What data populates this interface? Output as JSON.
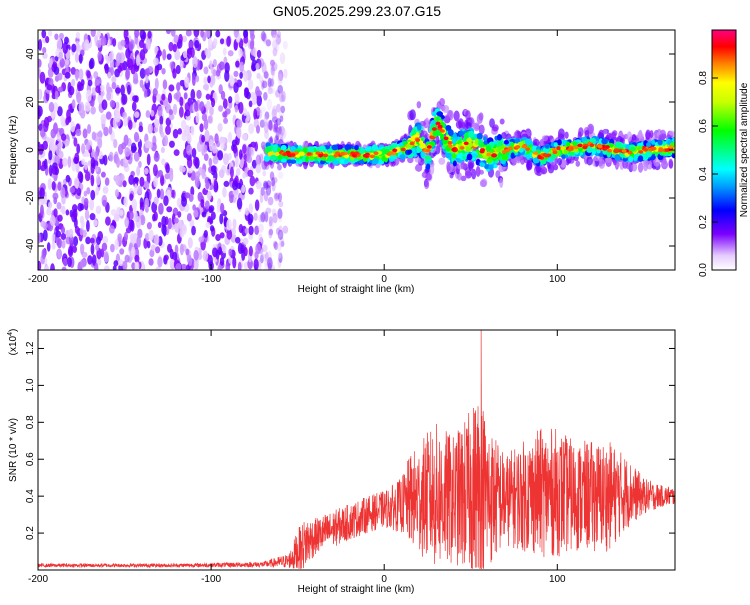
{
  "chart_data": [
    {
      "type": "heatmap",
      "title": "GN05.2025.299.23.07.G15",
      "xlabel": "Height of straight line (km)",
      "ylabel": "Frequency (Hz)",
      "xlim": [
        -200,
        168
      ],
      "ylim": [
        -50,
        50
      ],
      "xticks": [
        -200,
        -100,
        0,
        100
      ],
      "xtick_labels": [
        "-200",
        "-100",
        "0",
        "100"
      ],
      "yticks": [
        -40,
        -20,
        0,
        20,
        40
      ],
      "ytick_labels": [
        "-40",
        "-20",
        "0",
        "20",
        "40"
      ],
      "colorbar": {
        "label": "Normalized spectral amplitude",
        "range": [
          0,
          1
        ],
        "ticks": [
          0.0,
          0.2,
          0.4,
          0.6,
          0.8
        ],
        "tick_labels": [
          "0.0",
          "0.2",
          "0.4",
          "0.6",
          "0.8"
        ]
      },
      "regions": [
        {
          "name": "noise",
          "x_range": [
            -200,
            -65
          ],
          "freq_range": [
            -50,
            50
          ],
          "amplitude": 0.1
        },
        {
          "name": "signal-band",
          "x_range": [
            -68,
            168
          ],
          "freq_center": [
            [
              -68,
              -1
            ],
            [
              -50,
              -2
            ],
            [
              -20,
              -2
            ],
            [
              0,
              -2
            ],
            [
              10,
              0
            ],
            [
              20,
              5
            ],
            [
              25,
              -2
            ],
            [
              30,
              12
            ],
            [
              40,
              0
            ],
            [
              50,
              3
            ],
            [
              60,
              -2
            ],
            [
              70,
              0
            ],
            [
              80,
              2
            ],
            [
              90,
              -3
            ],
            [
              100,
              0
            ],
            [
              120,
              2
            ],
            [
              140,
              -1
            ],
            [
              168,
              1
            ]
          ],
          "amplitude_peak": 0.95
        }
      ]
    },
    {
      "type": "line",
      "title": "",
      "xlabel": "Height of straight line (km)",
      "ylabel": "SNR (10 * v/v)",
      "scale_label": "(x10",
      "scale_exp": "4",
      "scale_close": ")",
      "xlim": [
        -200,
        168
      ],
      "ylim": [
        0,
        1.3
      ],
      "xticks": [
        -200,
        -100,
        0,
        100
      ],
      "xtick_labels": [
        "-200",
        "-100",
        "0",
        "100"
      ],
      "yticks": [
        0.2,
        0.4,
        0.6,
        0.8,
        1.0,
        1.2
      ],
      "ytick_labels": [
        "0.2",
        "0.4",
        "0.6",
        "0.8",
        "1.0",
        "1.2"
      ],
      "series": [
        {
          "name": "SNR",
          "color": "#ee3333",
          "envelope": {
            "x": [
              -200,
              -120,
              -70,
              -55,
              -50,
              -45,
              -40,
              -30,
              -20,
              -10,
              0,
              10,
              15,
              20,
              25,
              30,
              40,
              50,
              55,
              60,
              70,
              80,
              90,
              100,
              110,
              120,
              130,
              140,
              150,
              160,
              168
            ],
            "base": [
              0.025,
              0.025,
              0.03,
              0.05,
              0.1,
              0.15,
              0.18,
              0.22,
              0.26,
              0.3,
              0.33,
              0.35,
              0.38,
              0.38,
              0.4,
              0.4,
              0.38,
              0.42,
              0.45,
              0.4,
              0.38,
              0.4,
              0.42,
              0.42,
              0.4,
              0.4,
              0.4,
              0.42,
              0.4,
              0.4,
              0.4
            ],
            "amp": [
              0.01,
              0.01,
              0.015,
              0.04,
              0.12,
              0.14,
              0.1,
              0.1,
              0.1,
              0.1,
              0.1,
              0.15,
              0.25,
              0.3,
              0.35,
              0.4,
              0.35,
              0.45,
              0.55,
              0.4,
              0.25,
              0.3,
              0.35,
              0.35,
              0.3,
              0.3,
              0.3,
              0.2,
              0.1,
              0.06,
              0.05
            ]
          },
          "peak": {
            "x": 56,
            "y": 1.3
          }
        }
      ]
    }
  ]
}
